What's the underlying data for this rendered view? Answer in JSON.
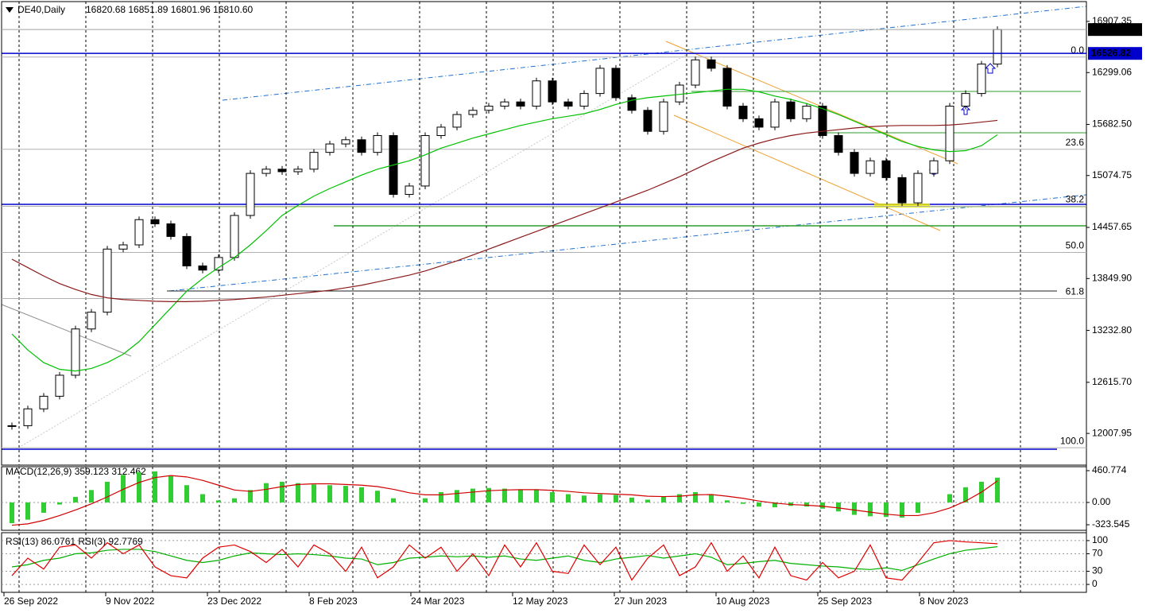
{
  "chart_data": [
    {
      "type": "candlestick",
      "title": "DE40,Daily",
      "subtitle": "16820.68 16851.89 16801.96 16810.60",
      "x_labels": [
        "26 Sep 2022",
        "9 Nov 2022",
        "23 Dec 2022",
        "8 Feb 2023",
        "24 Mar 2023",
        "12 May 2023",
        "27 Jun 2023",
        "10 Aug 2023",
        "25 Sep 2023",
        "8 Nov 2023"
      ],
      "ylim": [
        11631,
        17143
      ],
      "yticks": [
        16907.35,
        16299.06,
        {
          "value": 15682.5,
          "label": "15682.50"
        },
        15074.75,
        14457.65,
        {
          "value": 13849.9,
          "label": "13849.90"
        },
        {
          "value": 13232.8,
          "label": "13232.80"
        },
        {
          "value": 12615.7,
          "label": "12615.70"
        },
        12007.95
      ],
      "grid": true,
      "series": [
        {
          "type": "candlestick",
          "color": "#000000",
          "values": [
            12100,
            12300,
            12450,
            12700,
            13250,
            13450,
            14200,
            14250,
            14550,
            14500,
            14350,
            14000,
            13950,
            14100,
            14600,
            15100,
            15150,
            15120,
            15150,
            15350,
            15450,
            15500,
            15350,
            15550,
            14850,
            14950,
            15550,
            15650,
            15800,
            15850,
            15900,
            15950,
            15900,
            16200,
            15950,
            15900,
            16050,
            16350,
            16000,
            15850,
            15600,
            15950,
            16150,
            16450,
            16350,
            15900,
            15750,
            15650,
            15950,
            15750,
            15900,
            15550,
            15350,
            15100,
            15250,
            15050,
            14750,
            15100,
            15250,
            15900,
            16050,
            16400,
            16810.6
          ]
        },
        {
          "type": "line",
          "color": "#00c000",
          "values": [
            13190,
            13000,
            12850,
            12770,
            12750,
            12780,
            12850,
            12950,
            13100,
            13300,
            13500,
            13700,
            13850,
            13980,
            14100,
            14250,
            14420,
            14600,
            14720,
            14830,
            14920,
            15000,
            15080,
            15150,
            15200,
            15250,
            15320,
            15400,
            15460,
            15520,
            15570,
            15620,
            15670,
            15710,
            15750,
            15780,
            15810,
            15860,
            15920,
            15970,
            16000,
            16020,
            16040,
            16060,
            16080,
            16100,
            16100,
            16070,
            16020,
            15980,
            15930,
            15870,
            15800,
            15720,
            15640,
            15560,
            15480,
            15420,
            15380,
            15360,
            15370,
            15430,
            15560
          ]
        },
        {
          "type": "line",
          "color": "#8b1a1a",
          "values": [
            14080,
            13980,
            13880,
            13790,
            13720,
            13660,
            13620,
            13600,
            13590,
            13580,
            13575,
            13575,
            13580,
            13590,
            13600,
            13615,
            13630,
            13650,
            13670,
            13690,
            13710,
            13740,
            13770,
            13810,
            13850,
            13890,
            13940,
            14000,
            14060,
            14130,
            14200,
            14270,
            14340,
            14410,
            14480,
            14550,
            14620,
            14690,
            14760,
            14830,
            14900,
            14980,
            15060,
            15150,
            15240,
            15320,
            15400,
            15460,
            15510,
            15550,
            15580,
            15600,
            15620,
            15640,
            15655,
            15665,
            15670,
            15670,
            15670,
            15675,
            15690,
            15710,
            15730
          ]
        }
      ],
      "levels": [
        {
          "value": 16483,
          "label": "0.0"
        },
        {
          "value": 15387,
          "label": "23.6"
        },
        {
          "value": 14709,
          "label": "38.2"
        },
        {
          "value": 14160,
          "label": "50.0"
        },
        {
          "value": 13612,
          "label": "61.8"
        },
        {
          "value": 11838,
          "label": "100.0"
        }
      ],
      "level_color": "#b0b0b0",
      "price_labels": [
        {
          "value": 16810.6,
          "label": "16810.60",
          "color": "#000000",
          "line": "#a0a0a0"
        },
        {
          "value": 16526.82,
          "label": "16526.82",
          "color": "#0000cd",
          "line": "#0000cd"
        }
      ]
    },
    {
      "type": "macd",
      "title": "MACD(12,26,9) 359.123 312.462",
      "ylim": [
        -404,
        518
      ],
      "yticks": [
        460.774,
        {
          "value": 0,
          "label": "0.00"
        },
        -323.545
      ],
      "zero_line": true,
      "series": [
        {
          "type": "bar",
          "color": "#32cd32",
          "values": [
            -300,
            -250,
            -150,
            -30,
            80,
            180,
            300,
            400,
            440,
            450,
            380,
            250,
            120,
            30,
            60,
            180,
            280,
            300,
            280,
            260,
            250,
            240,
            220,
            170,
            60,
            0,
            60,
            150,
            180,
            200,
            210,
            200,
            190,
            180,
            150,
            120,
            100,
            120,
            110,
            70,
            40,
            80,
            120,
            150,
            110,
            30,
            -20,
            -60,
            -70,
            -50,
            -60,
            -90,
            -130,
            -180,
            -200,
            -210,
            -220,
            -150,
            0,
            120,
            220,
            300,
            359.123
          ]
        },
        {
          "type": "line",
          "color": "#d00000",
          "values": [
            -330,
            -310,
            -260,
            -190,
            -110,
            -20,
            80,
            190,
            290,
            360,
            390,
            370,
            320,
            250,
            180,
            160,
            190,
            230,
            260,
            270,
            270,
            260,
            250,
            230,
            190,
            140,
            110,
            110,
            130,
            150,
            170,
            180,
            185,
            185,
            175,
            160,
            140,
            130,
            120,
            110,
            90,
            85,
            90,
            110,
            115,
            90,
            60,
            20,
            -10,
            -30,
            -40,
            -55,
            -80,
            -110,
            -140,
            -170,
            -190,
            -190,
            -150,
            -80,
            20,
            150,
            312.462
          ]
        }
      ]
    },
    {
      "type": "rsi",
      "title": "RSI(13) 86.0761  RSI(3) 92.7769",
      "ylim": [
        -18,
        118
      ],
      "yticks": [
        100,
        70,
        30,
        0
      ],
      "grid": true,
      "series": [
        {
          "type": "line",
          "color": "#00b000",
          "values": [
            40,
            45,
            55,
            60,
            70,
            72,
            78,
            80,
            80,
            75,
            65,
            55,
            50,
            55,
            65,
            72,
            70,
            68,
            70,
            68,
            65,
            60,
            58,
            45,
            50,
            60,
            62,
            65,
            63,
            65,
            62,
            65,
            58,
            55,
            60,
            65,
            55,
            50,
            58,
            62,
            66,
            60,
            65,
            70,
            62,
            45,
            48,
            52,
            55,
            48,
            45,
            42,
            40,
            36,
            34,
            38,
            32,
            45,
            58,
            70,
            78,
            82,
            86.0761
          ]
        },
        {
          "type": "line",
          "color": "#e00000",
          "values": [
            20,
            60,
            35,
            85,
            90,
            60,
            95,
            70,
            90,
            40,
            20,
            15,
            60,
            85,
            90,
            75,
            50,
            80,
            40,
            90,
            70,
            30,
            85,
            15,
            40,
            90,
            60,
            85,
            30,
            70,
            20,
            90,
            40,
            95,
            30,
            25,
            90,
            45,
            85,
            10,
            60,
            90,
            20,
            40,
            95,
            30,
            65,
            15,
            85,
            20,
            10,
            50,
            15,
            30,
            90,
            15,
            10,
            50,
            95,
            100,
            97,
            95,
            92.7769
          ]
        }
      ]
    }
  ]
}
